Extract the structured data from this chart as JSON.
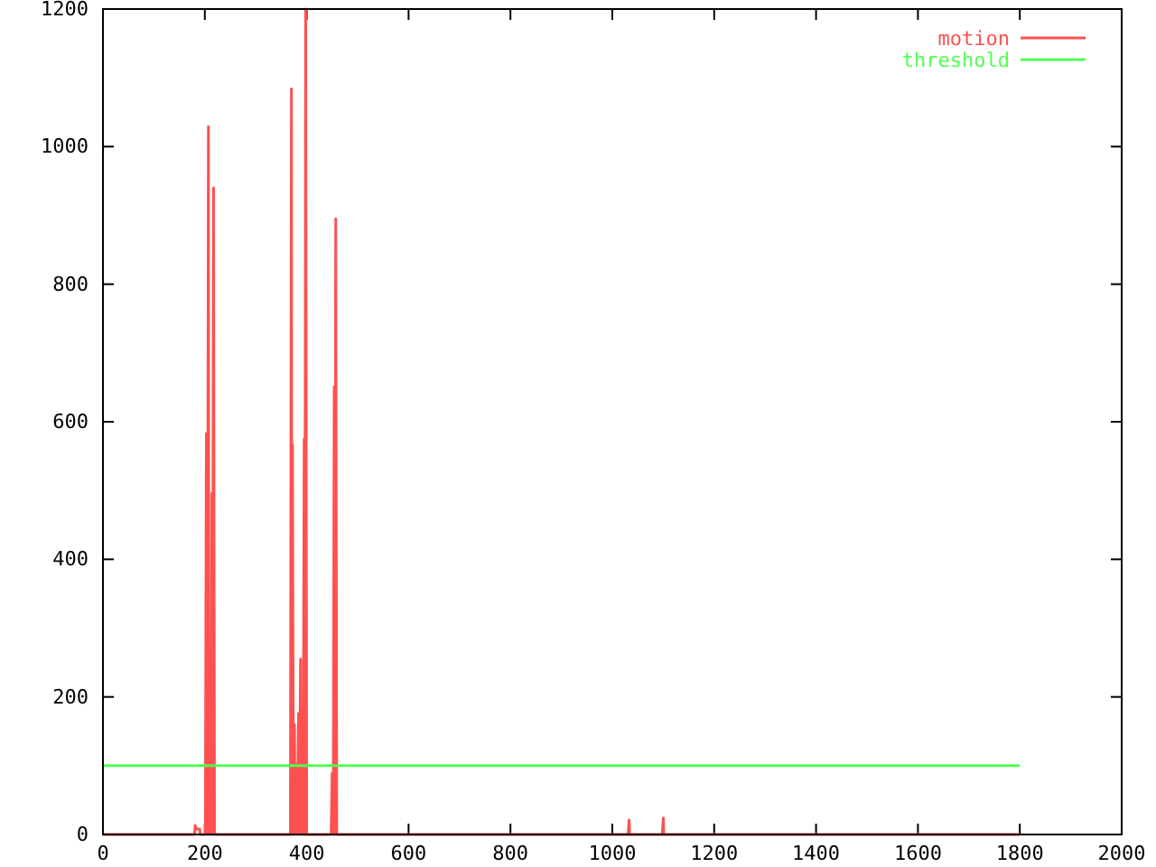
{
  "chart_data": {
    "type": "line",
    "xlim": [
      0,
      2000
    ],
    "ylim": [
      0,
      1200
    ],
    "xticks": [
      0,
      200,
      400,
      600,
      800,
      1000,
      1200,
      1400,
      1600,
      1800,
      2000
    ],
    "yticks": [
      0,
      200,
      400,
      600,
      800,
      1000,
      1200
    ],
    "grid": false,
    "legend": "top right",
    "marker": "none",
    "line_style": "solid",
    "series": [
      {
        "name": "motion",
        "color": "#ff5050",
        "x": [
          0,
          180,
          181,
          184,
          190,
          191,
          201,
          203,
          205,
          207,
          208,
          210,
          212,
          214,
          215,
          217,
          219,
          368,
          370,
          371,
          372,
          374,
          376,
          377,
          379,
          381,
          384,
          385,
          388,
          389,
          391,
          393,
          395,
          396,
          398,
          400,
          448,
          450,
          452,
          454,
          455,
          457,
          459,
          1031,
          1033,
          1034,
          1098,
          1100,
          1101,
          1800
        ],
        "values": [
          0,
          0,
          13,
          8,
          8,
          0,
          0,
          583,
          0,
          1029,
          0,
          234,
          0,
          496,
          0,
          940,
          0,
          0,
          1084,
          0,
          567,
          0,
          160,
          0,
          102,
          0,
          176,
          0,
          255,
          0,
          100,
          0,
          575,
          0,
          1200,
          0,
          0,
          89,
          0,
          651,
          0,
          895,
          0,
          0,
          21,
          0,
          0,
          24,
          0,
          0
        ]
      },
      {
        "name": "threshold",
        "color": "#50ff50",
        "x": [
          0,
          1800
        ],
        "values": [
          100,
          100
        ]
      }
    ]
  }
}
